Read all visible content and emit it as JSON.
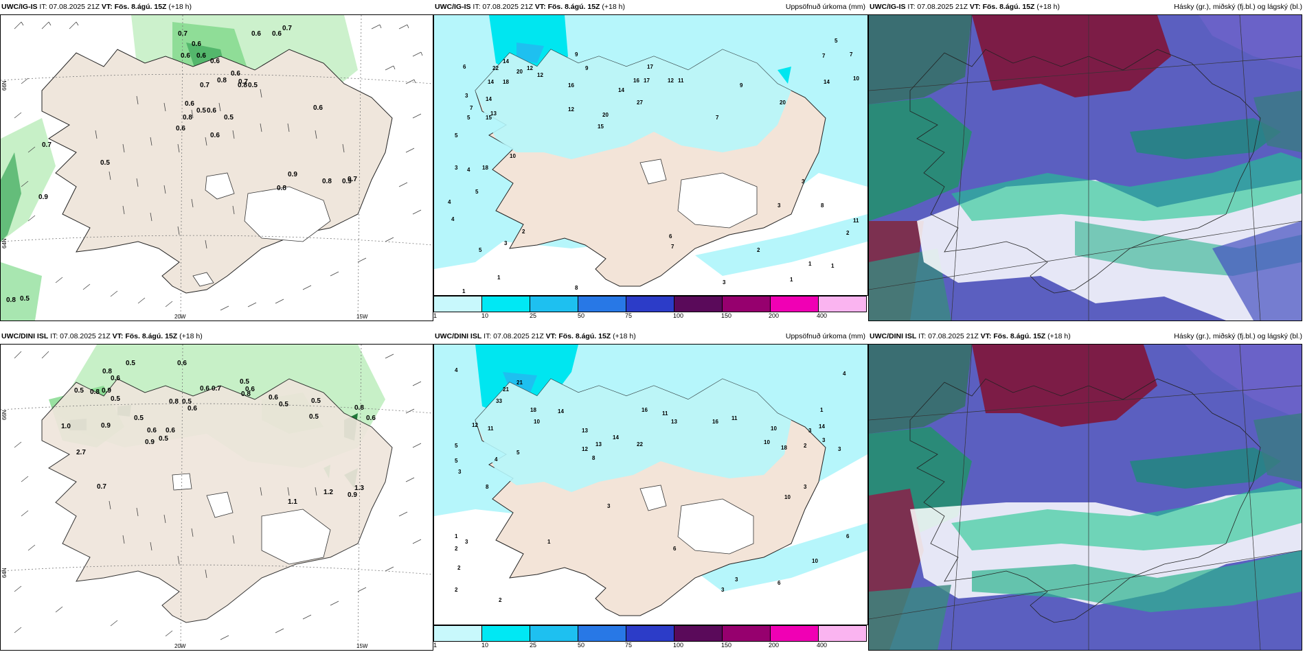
{
  "header": {
    "it_prefix": "IT: 07.08.2025 21Z",
    "vt_label": "VT: Fös. 8.ágú. 15Z",
    "lead": "(+18 h)"
  },
  "rows": [
    {
      "model": "UWC/IG-IS",
      "precip_title": "Uppsöfnuð úrkoma (mm)",
      "cloud_title": "Hásky (gr.), miðský (fj.bl.) og lágský (bl.)",
      "wind_values": [
        "0.7",
        "0.6",
        "0.6",
        "0.7",
        "0.6",
        "0.6",
        "0.6",
        "0.6",
        "0.8",
        "0.6",
        "0.7",
        "0.8",
        "0.7",
        "0.5",
        "0.6",
        "0.5",
        "0.6",
        "0.5",
        "0.6",
        "0.6",
        "0.8",
        "0.6",
        "0.7",
        "0.5",
        "0.9",
        "0.9",
        "0.8",
        "0.8",
        "0.9",
        "0.7",
        "0.8",
        "0.5"
      ],
      "lon_labels": [
        "20W",
        "15W"
      ],
      "lat_labels": [
        "66N",
        "64N"
      ],
      "precip_values": [
        "14",
        "20",
        "12",
        "12",
        "9",
        "9",
        "22",
        "14",
        "18",
        "14",
        "13",
        "15",
        "12",
        "16",
        "27",
        "14",
        "17",
        "16",
        "17",
        "12",
        "11",
        "20",
        "20",
        "15",
        "10",
        "18",
        "4",
        "5",
        "3",
        "5",
        "7",
        "6",
        "3",
        "4",
        "4",
        "5",
        "1",
        "5",
        "3",
        "2",
        "1",
        "8",
        "7",
        "6",
        "3",
        "2",
        "1",
        "1",
        "1",
        "11",
        "14",
        "10",
        "9",
        "7",
        "7",
        "5",
        "3",
        "3",
        "2",
        "8",
        "7"
      ]
    },
    {
      "model": "UWC/DINI ISL",
      "precip_title": "Uppsöfnuð úrkoma (mm)",
      "cloud_title": "Hásky (gr.), miðský (fj.bl.) og lágský (bl.)",
      "wind_values": [
        "0.5",
        "0.6",
        "0.8",
        "0.5",
        "0.9",
        "0.6",
        "0.8",
        "0.5",
        "1.0",
        "0.9",
        "0.5",
        "0.6",
        "0.9",
        "0.6",
        "0.5",
        "0.8",
        "0.5",
        "0.6",
        "0.6",
        "0.7",
        "0.5",
        "0.6",
        "0.8",
        "0.6",
        "0.5",
        "0.5",
        "0.5",
        "0.8",
        "0.6",
        "1.1",
        "1.2",
        "1.3",
        "0.9",
        "0.7",
        "2.7"
      ],
      "lon_labels": [
        "20W",
        "15W"
      ],
      "lat_labels": [
        "66N",
        "64N"
      ],
      "precip_values": [
        "21",
        "33",
        "21",
        "18",
        "14",
        "10",
        "12",
        "11",
        "13",
        "16",
        "11",
        "13",
        "16",
        "11",
        "14",
        "13",
        "12",
        "18",
        "10",
        "10",
        "8",
        "8",
        "14",
        "22",
        "4",
        "5",
        "3",
        "5",
        "4",
        "5",
        "1",
        "2",
        "3",
        "2",
        "2",
        "1",
        "3",
        "2",
        "6",
        "10",
        "6",
        "3",
        "3",
        "6",
        "2",
        "3",
        "3",
        "1",
        "3",
        "4",
        "10",
        "3"
      ]
    }
  ],
  "colorbar": {
    "ticks": [
      "1",
      "10",
      "25",
      "50",
      "75",
      "100",
      "150",
      "200",
      "400"
    ],
    "colors": [
      "#c8f8fc",
      "#00e8f4",
      "#1ec0f0",
      "#2878e6",
      "#2c3cc8",
      "#5a0a5a",
      "#96006e",
      "#f000b4",
      "#fab4f0"
    ]
  },
  "colors": {
    "land": "#f3e4d8",
    "wind_land": "#efe6dc",
    "precip_light": "#b6f6fb",
    "precip_mid": "#00e6f0",
    "green_light": "#c7f0c7",
    "green_mid": "#7fd88a",
    "green_dark": "#1f7a3a"
  }
}
